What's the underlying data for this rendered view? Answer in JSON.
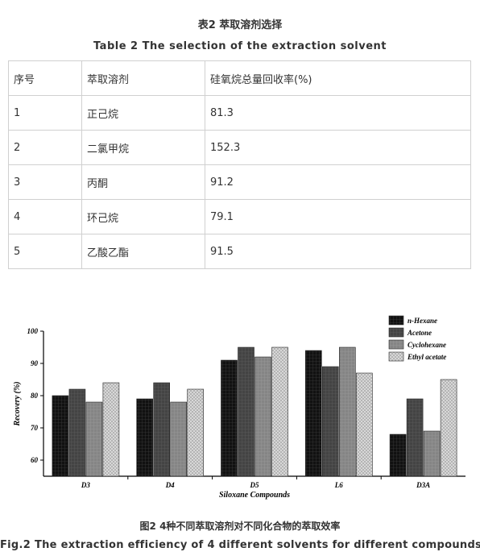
{
  "table": {
    "caption_cn": "表2 萃取溶剂选择",
    "caption_en": "Table 2 The selection of the extraction solvent",
    "headers": [
      "序号",
      "萃取溶剂",
      "硅氧烷总量回收率(%)"
    ],
    "rows": [
      [
        "1",
        "正己烷",
        "81.3"
      ],
      [
        "2",
        "二氯甲烷",
        "152.3"
      ],
      [
        "3",
        "丙酮",
        "91.2"
      ],
      [
        "4",
        "环己烷",
        "79.1"
      ],
      [
        "5",
        "乙酸乙酯",
        "91.5"
      ]
    ]
  },
  "figure": {
    "caption_cn": "图2 4种不同萃取溶剂对不同化合物的萃取效率",
    "caption_en": "Fig.2 The extraction efficiency of 4 different solvents for different compounds"
  },
  "chart_data": {
    "type": "bar",
    "categories": [
      "D3",
      "D4",
      "D5",
      "L6",
      "D3A"
    ],
    "series": [
      {
        "name": "n-Hexane",
        "values": [
          80,
          79,
          91,
          94,
          68
        ],
        "color": "#1a1a1a",
        "pattern": "black-grid"
      },
      {
        "name": "Acetone",
        "values": [
          82,
          84,
          95,
          89,
          79
        ],
        "color": "#4a4a4a",
        "pattern": "dark-grid"
      },
      {
        "name": "Cyclohexane",
        "values": [
          78,
          78,
          92,
          95,
          69
        ],
        "color": "#8a8a8a",
        "pattern": "gray-grid"
      },
      {
        "name": "Ethyl acetate",
        "values": [
          84,
          82,
          95,
          87,
          85
        ],
        "color": "#cfcfcf",
        "pattern": "light-check"
      }
    ],
    "xlabel": "Siloxane Compounds",
    "ylabel": "Recovery (%)",
    "ylim": [
      55,
      100
    ],
    "yticks": [
      60,
      70,
      80,
      90,
      100
    ],
    "legend_position": "top-right",
    "grid": false
  }
}
